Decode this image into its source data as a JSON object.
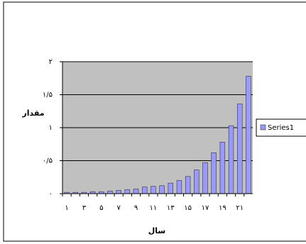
{
  "chart_data": {
    "type": "bar",
    "categories": [
      "۱",
      null,
      "۳",
      null,
      "۵",
      null,
      "۷",
      null,
      "۹",
      null,
      "۱۱",
      null,
      "۱۳",
      null,
      "۱۵",
      null,
      "۱۷",
      null,
      "۱۹",
      null,
      "۲۱",
      null
    ],
    "series": [
      {
        "name": "Series1",
        "color": "#9999ff",
        "values": [
          0.02,
          0.02,
          0.02,
          0.03,
          0.03,
          0.04,
          0.05,
          0.06,
          0.07,
          0.1,
          0.11,
          0.12,
          0.16,
          0.2,
          0.26,
          0.36,
          0.47,
          0.62,
          0.78,
          1.03,
          1.36,
          1.78
        ]
      }
    ],
    "ylim": [
      0,
      2
    ],
    "yticks": [
      {
        "value": 0,
        "label": "۰"
      },
      {
        "value": 0.5,
        "label": "۰/۵"
      },
      {
        "value": 1,
        "label": "۱"
      },
      {
        "value": 1.5,
        "label": "۱/۵"
      },
      {
        "value": 2,
        "label": "۲"
      }
    ],
    "xlabel": "سال",
    "ylabel": "مقدار",
    "grid": true
  }
}
